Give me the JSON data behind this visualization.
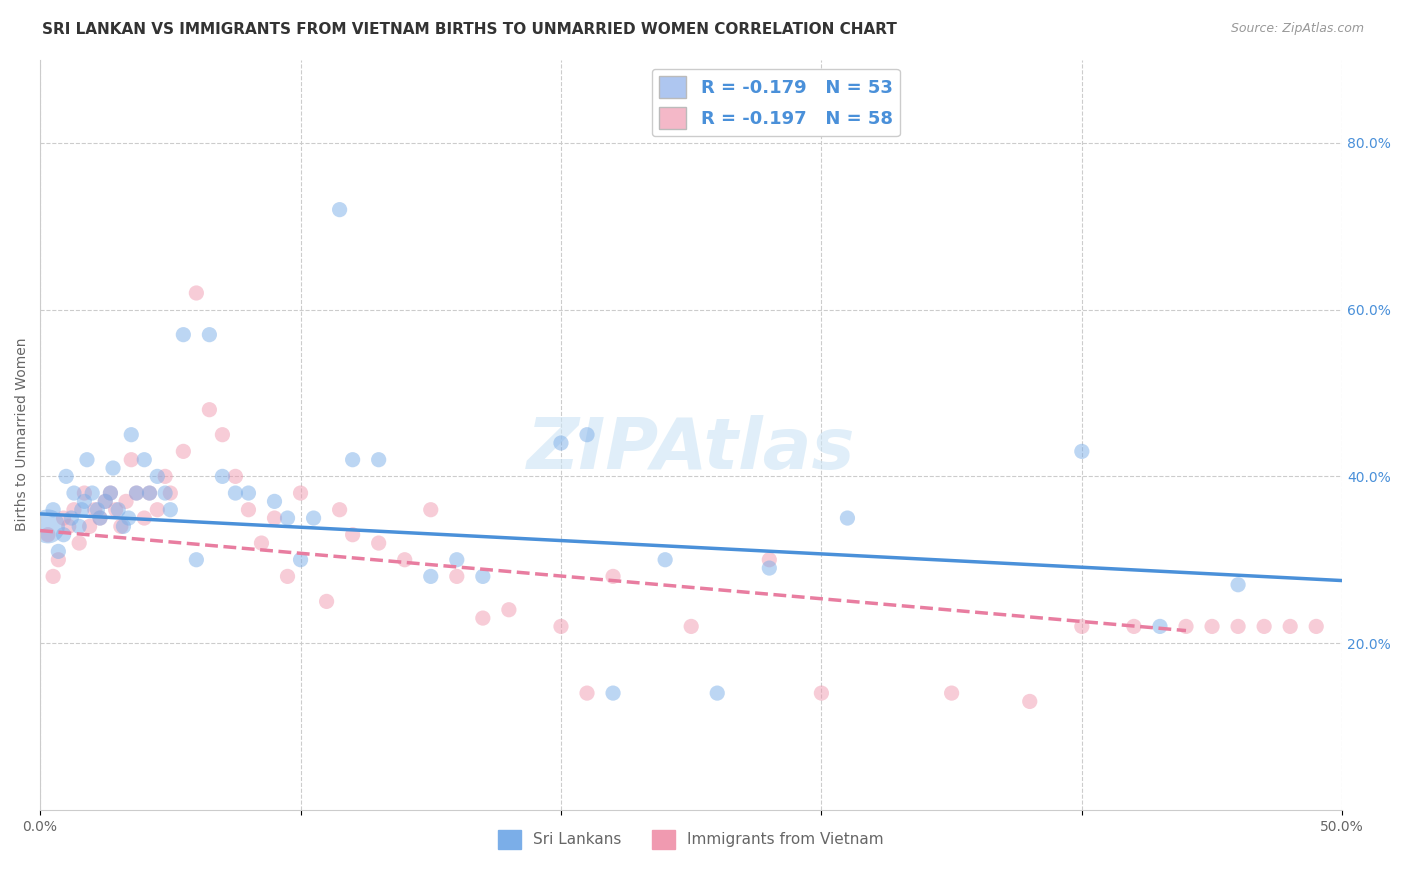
{
  "title": "SRI LANKAN VS IMMIGRANTS FROM VIETNAM BIRTHS TO UNMARRIED WOMEN CORRELATION CHART",
  "source": "Source: ZipAtlas.com",
  "ylabel": "Births to Unmarried Women",
  "xlim": [
    0.0,
    0.5
  ],
  "ylim": [
    0.0,
    0.9
  ],
  "x_tick_pos": [
    0.0,
    0.1,
    0.2,
    0.3,
    0.4,
    0.5
  ],
  "x_tick_labels": [
    "0.0%",
    "",
    "",
    "",
    "",
    "50.0%"
  ],
  "y_ticks_right": [
    0.2,
    0.4,
    0.6,
    0.8
  ],
  "sri_lankan_color": "#7baee8",
  "vietnam_color": "#f09ab0",
  "sri_lankan_line_color": "#4a90d9",
  "vietnam_line_color": "#e87da0",
  "watermark_text": "ZIPAtlas",
  "watermark_color": "#cce4f5",
  "title_fontsize": 11,
  "axis_label_fontsize": 10,
  "tick_fontsize": 10,
  "sri_lankan_scatter": {
    "x": [
      0.003,
      0.005,
      0.007,
      0.009,
      0.01,
      0.012,
      0.013,
      0.015,
      0.016,
      0.017,
      0.018,
      0.02,
      0.022,
      0.023,
      0.025,
      0.027,
      0.028,
      0.03,
      0.032,
      0.034,
      0.035,
      0.037,
      0.04,
      0.042,
      0.045,
      0.048,
      0.05,
      0.055,
      0.06,
      0.065,
      0.07,
      0.075,
      0.08,
      0.09,
      0.095,
      0.1,
      0.105,
      0.115,
      0.12,
      0.13,
      0.15,
      0.16,
      0.17,
      0.2,
      0.21,
      0.22,
      0.24,
      0.26,
      0.28,
      0.31,
      0.4,
      0.43,
      0.46
    ],
    "y": [
      0.34,
      0.36,
      0.31,
      0.33,
      0.4,
      0.35,
      0.38,
      0.34,
      0.36,
      0.37,
      0.42,
      0.38,
      0.36,
      0.35,
      0.37,
      0.38,
      0.41,
      0.36,
      0.34,
      0.35,
      0.45,
      0.38,
      0.42,
      0.38,
      0.4,
      0.38,
      0.36,
      0.57,
      0.3,
      0.57,
      0.4,
      0.38,
      0.38,
      0.37,
      0.35,
      0.3,
      0.35,
      0.72,
      0.42,
      0.42,
      0.28,
      0.3,
      0.28,
      0.44,
      0.45,
      0.14,
      0.3,
      0.14,
      0.29,
      0.35,
      0.43,
      0.22,
      0.27
    ],
    "sizes": [
      600,
      120,
      120,
      120,
      120,
      120,
      120,
      120,
      120,
      120,
      120,
      120,
      120,
      120,
      120,
      120,
      120,
      120,
      120,
      120,
      120,
      120,
      120,
      120,
      120,
      120,
      120,
      120,
      120,
      120,
      120,
      120,
      120,
      120,
      120,
      120,
      120,
      120,
      120,
      120,
      120,
      120,
      120,
      120,
      120,
      120,
      120,
      120,
      120,
      120,
      120,
      120,
      120
    ]
  },
  "vietnam_scatter": {
    "x": [
      0.003,
      0.005,
      0.007,
      0.009,
      0.011,
      0.013,
      0.015,
      0.017,
      0.019,
      0.021,
      0.023,
      0.025,
      0.027,
      0.029,
      0.031,
      0.033,
      0.035,
      0.037,
      0.04,
      0.042,
      0.045,
      0.048,
      0.05,
      0.055,
      0.06,
      0.065,
      0.07,
      0.075,
      0.08,
      0.085,
      0.09,
      0.095,
      0.1,
      0.11,
      0.115,
      0.12,
      0.13,
      0.14,
      0.15,
      0.16,
      0.17,
      0.18,
      0.2,
      0.21,
      0.22,
      0.25,
      0.28,
      0.3,
      0.35,
      0.38,
      0.4,
      0.42,
      0.44,
      0.45,
      0.46,
      0.47,
      0.48,
      0.49
    ],
    "y": [
      0.33,
      0.28,
      0.3,
      0.35,
      0.34,
      0.36,
      0.32,
      0.38,
      0.34,
      0.36,
      0.35,
      0.37,
      0.38,
      0.36,
      0.34,
      0.37,
      0.42,
      0.38,
      0.35,
      0.38,
      0.36,
      0.4,
      0.38,
      0.43,
      0.62,
      0.48,
      0.45,
      0.4,
      0.36,
      0.32,
      0.35,
      0.28,
      0.38,
      0.25,
      0.36,
      0.33,
      0.32,
      0.3,
      0.36,
      0.28,
      0.23,
      0.24,
      0.22,
      0.14,
      0.28,
      0.22,
      0.3,
      0.14,
      0.14,
      0.13,
      0.22,
      0.22,
      0.22,
      0.22,
      0.22,
      0.22,
      0.22,
      0.22
    ],
    "sizes": [
      120,
      120,
      120,
      120,
      120,
      120,
      120,
      120,
      120,
      120,
      120,
      120,
      120,
      120,
      120,
      120,
      120,
      120,
      120,
      120,
      120,
      120,
      120,
      120,
      120,
      120,
      120,
      120,
      120,
      120,
      120,
      120,
      120,
      120,
      120,
      120,
      120,
      120,
      120,
      120,
      120,
      120,
      120,
      120,
      120,
      120,
      120,
      120,
      120,
      120,
      120,
      120,
      120,
      120,
      120,
      120,
      120,
      120
    ]
  },
  "sl_line_x0": 0.0,
  "sl_line_x1": 0.5,
  "sl_line_y0": 0.355,
  "sl_line_y1": 0.275,
  "vn_line_x0": 0.0,
  "vn_line_x1": 0.44,
  "vn_line_y0": 0.335,
  "vn_line_y1": 0.215
}
